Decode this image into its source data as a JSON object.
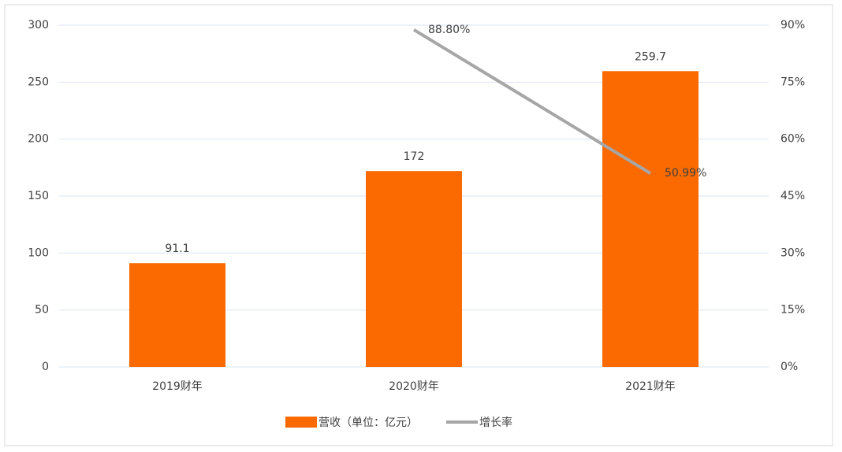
{
  "chart_data": {
    "type": "combo",
    "categories": [
      "2019财年",
      "2020财年",
      "2021财年"
    ],
    "series": [
      {
        "name": "营收（单位：亿元）",
        "type": "bar",
        "color": "#fa6a00",
        "values": [
          91.1,
          172,
          259.7
        ]
      },
      {
        "name": "增长率",
        "type": "line",
        "axis": "y2",
        "color": "#a6a6a6",
        "values": [
          null,
          88.8,
          50.99
        ],
        "value_labels": [
          null,
          "88.80%",
          "50.99%"
        ]
      }
    ],
    "ylim": [
      0,
      300
    ],
    "yticks": [
      0,
      50,
      100,
      150,
      200,
      250,
      300
    ],
    "y2lim": [
      0,
      90
    ],
    "y2ticks": [
      {
        "value": 0,
        "label": "0%"
      },
      {
        "value": 15,
        "label": "15%"
      },
      {
        "value": 30,
        "label": "30%"
      },
      {
        "value": 45,
        "label": "45%"
      },
      {
        "value": 60,
        "label": "60%"
      },
      {
        "value": 75,
        "label": "75%"
      },
      {
        "value": 90,
        "label": "90%"
      }
    ],
    "grid": true,
    "legend": "bottom"
  }
}
